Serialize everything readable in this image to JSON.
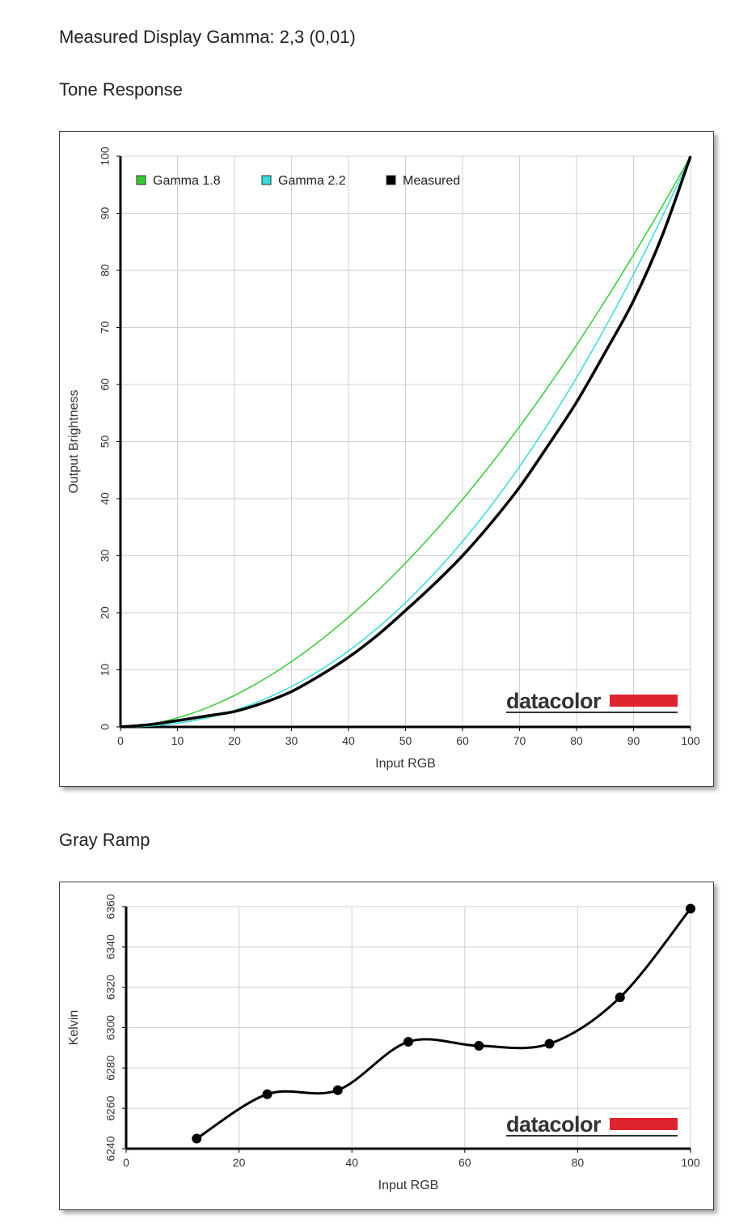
{
  "page": {
    "gamma_line": "Measured Display Gamma: 2,3 (0,01)",
    "tone_heading": "Tone Response",
    "gray_heading": "Gray Ramp",
    "logo_text": "datacolor"
  },
  "chart_data": [
    {
      "type": "line",
      "title": "Tone Response",
      "xlabel": "Input RGB",
      "ylabel": "Output Brightness",
      "xlim": [
        0,
        100
      ],
      "ylim": [
        0,
        100
      ],
      "xticks": [
        0,
        10,
        20,
        30,
        40,
        50,
        60,
        70,
        80,
        90,
        100
      ],
      "yticks": [
        0,
        10,
        20,
        30,
        40,
        50,
        60,
        70,
        80,
        90,
        100
      ],
      "grid": true,
      "legend_position": "top-left",
      "series": [
        {
          "name": "Gamma 1.8",
          "color": "#33cc33",
          "line_width": "thin",
          "gamma": 1.8
        },
        {
          "name": "Gamma 2.2",
          "color": "#33dddd",
          "line_width": "thin",
          "gamma": 2.2
        },
        {
          "name": "Measured",
          "color": "#000000",
          "line_width": "thick",
          "x": [
            0,
            5,
            10,
            15,
            20,
            25,
            30,
            35,
            40,
            45,
            50,
            55,
            60,
            65,
            70,
            75,
            80,
            85,
            90,
            95,
            100
          ],
          "y": [
            0,
            0.4,
            1.1,
            1.9,
            2.7,
            4.2,
            6.2,
            9.0,
            12.2,
            16.0,
            20.4,
            25.0,
            30.0,
            35.7,
            42.0,
            49.3,
            56.9,
            65.6,
            74.7,
            86.0,
            100
          ]
        }
      ]
    },
    {
      "type": "line",
      "title": "Gray Ramp",
      "xlabel": "Input RGB",
      "ylabel": "Kelvin",
      "xlim": [
        0,
        100
      ],
      "ylim": [
        6240,
        6360
      ],
      "xticks": [
        0,
        20,
        40,
        60,
        80,
        100
      ],
      "yticks": [
        6240,
        6260,
        6280,
        6300,
        6320,
        6340,
        6360
      ],
      "grid": true,
      "series": [
        {
          "color": "#000000",
          "markers": true,
          "x": [
            12.5,
            25,
            37.5,
            50,
            62.5,
            75,
            87.5,
            100
          ],
          "y": [
            6245,
            6267,
            6269,
            6293,
            6291,
            6292,
            6315,
            6359
          ]
        }
      ]
    }
  ]
}
